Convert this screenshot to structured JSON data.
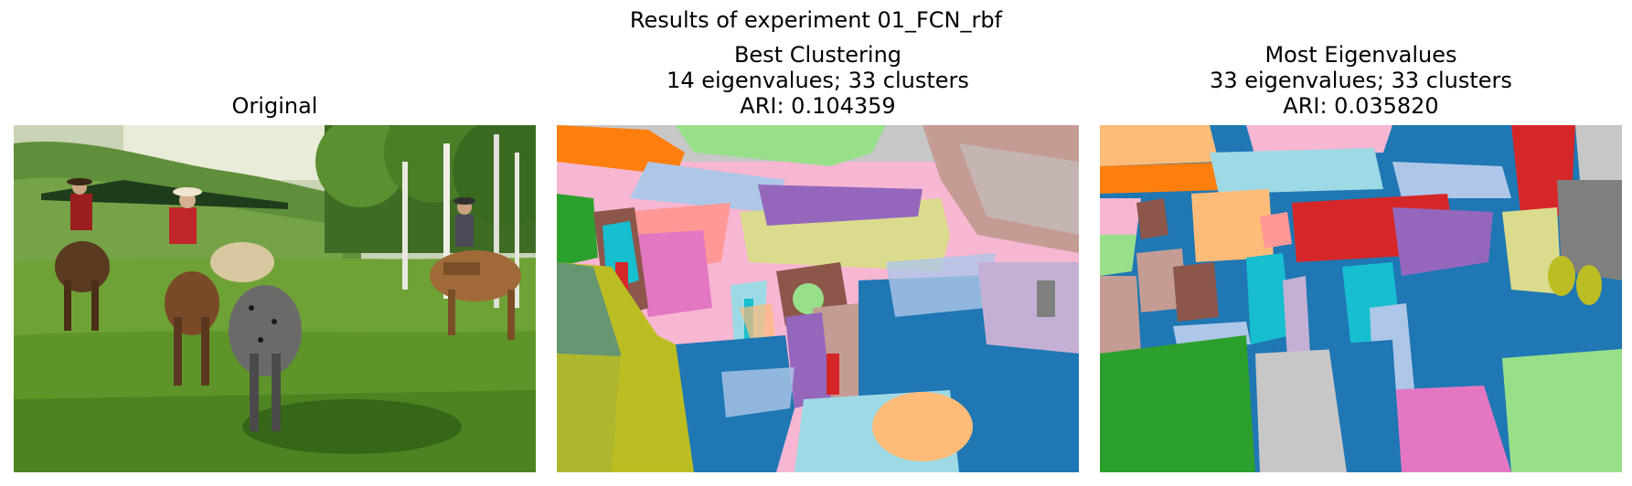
{
  "figure": {
    "suptitle": "Results of experiment 01_FCN_rbf"
  },
  "panels": [
    {
      "id": "original",
      "title_lines": [
        "Original"
      ],
      "image": "photo of riders on horseback in a grassy meadow with hills and birch trees"
    },
    {
      "id": "best-clustering",
      "title_lines": [
        "Best Clustering",
        "14 eigenvalues; 33 clusters",
        "ARI: 0.104359"
      ],
      "eigenvalues": 14,
      "clusters": 33,
      "ari": 0.104359
    },
    {
      "id": "most-eigenvalues",
      "title_lines": [
        "Most Eigenvalues",
        "33 eigenvalues; 33 clusters",
        "ARI: 0.035820"
      ],
      "eigenvalues": 33,
      "clusters": 33,
      "ari": 0.03582
    }
  ],
  "palette": {
    "blue": "#1f77b4",
    "light_blue": "#aec7e8",
    "orange": "#ff7f0e",
    "light_orange": "#ffbb78",
    "green": "#2ca02c",
    "light_green": "#98df8a",
    "red": "#d62728",
    "pink": "#ff9896",
    "purple": "#9467bd",
    "lavender": "#c5b0d5",
    "brown": "#8c564b",
    "tan": "#c49c94",
    "magenta": "#e377c2",
    "light_pink": "#f7b6d2",
    "gray": "#7f7f7f",
    "light_gray": "#c7c7c7",
    "olive": "#bcbd22",
    "khaki": "#dbdb8d",
    "cyan": "#17becf",
    "light_cyan": "#9edae5"
  }
}
